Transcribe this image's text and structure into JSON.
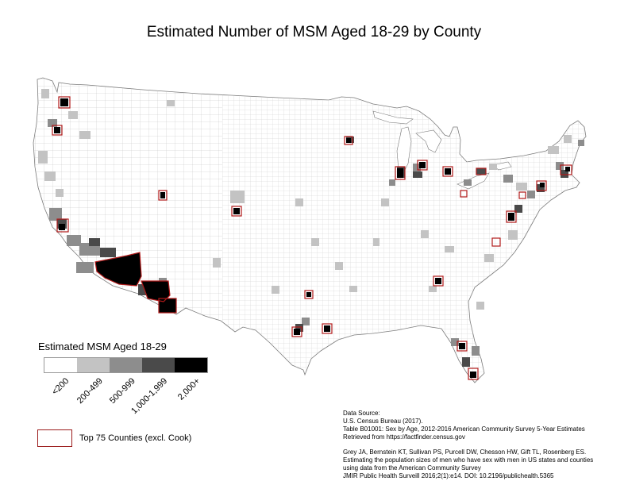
{
  "title": "Estimated Number of MSM Aged 18-29 by County",
  "colors": {
    "class_lt200": "#ffffff",
    "class_200_499": "#c3c3c3",
    "class_500_999": "#8d8d8d",
    "class_1000_1999": "#4a4a4a",
    "class_2000_plus": "#000000",
    "top75_outline": "#b01919",
    "county_border": "#bfbfbf"
  },
  "legend": {
    "title": "Estimated MSM Aged 18-29",
    "classes": [
      {
        "label": "<200",
        "color": "#ffffff"
      },
      {
        "label": "200-499",
        "color": "#c3c3c3"
      },
      {
        "label": "500-999",
        "color": "#8d8d8d"
      },
      {
        "label": "1,000-1,999",
        "color": "#4a4a4a"
      },
      {
        "label": "2,000+",
        "color": "#000000"
      }
    ],
    "top75_label": "Top 75 Counties (excl. Cook)"
  },
  "source": {
    "lines": [
      "Data Source:",
      "U.S. Census Bureau (2017).",
      "Table B01001: Sex by Age, 2012-2016 American Community Survey 5-Year Estimates",
      "Retrieved from https://factfinder.census.gov"
    ]
  },
  "citation": {
    "lines": [
      "Grey JA, Bernstein KT, Sullivan PS, Purcell DW, Chesson HW, Gift TL, Rosenberg ES.",
      "Estimating the population sizes of men who have sex with men in US states and counties",
      "using data from the American Community Survey",
      "JMIR Public Health Surveill 2016;2(1):e14. DOI: 10.2196/publichealth.5365"
    ]
  }
}
